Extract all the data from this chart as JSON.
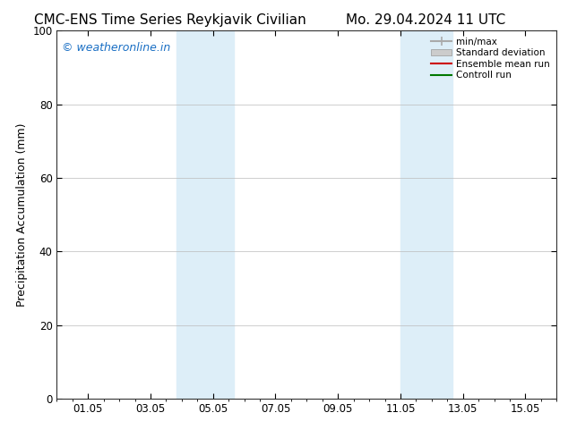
{
  "title_left": "CMC-ENS Time Series Reykjavik Civilian",
  "title_right": "Mo. 29.04.2024 11 UTC",
  "ylabel": "Precipitation Accumulation (mm)",
  "ylim": [
    0,
    100
  ],
  "yticks": [
    0,
    20,
    40,
    60,
    80,
    100
  ],
  "xtick_labels": [
    "01.05",
    "03.05",
    "05.05",
    "07.05",
    "09.05",
    "11.05",
    "13.05",
    "15.05"
  ],
  "xtick_positions": [
    1,
    3,
    5,
    7,
    9,
    11,
    13,
    15
  ],
  "xlim": [
    0,
    16
  ],
  "shaded_regions": [
    {
      "xmin": 3.83,
      "xmax": 4.5,
      "color": "#ddeef8"
    },
    {
      "xmin": 4.5,
      "xmax": 5.67,
      "color": "#ddeef8"
    },
    {
      "xmin": 11.0,
      "xmax": 11.67,
      "color": "#ddeef8"
    },
    {
      "xmin": 11.67,
      "xmax": 12.67,
      "color": "#ddeef8"
    }
  ],
  "watermark_text": "© weatheronline.in",
  "watermark_color": "#1a6fc4",
  "legend_entries": [
    {
      "label": "min/max",
      "color": "#aaaaaa",
      "lw": 1.5,
      "type": "line_with_ticks"
    },
    {
      "label": "Standard deviation",
      "color": "#cccccc",
      "lw": 6,
      "type": "thick_line"
    },
    {
      "label": "Ensemble mean run",
      "color": "#cc0000",
      "lw": 1.5,
      "type": "line"
    },
    {
      "label": "Controll run",
      "color": "#007700",
      "lw": 1.5,
      "type": "line"
    }
  ],
  "background_color": "#ffffff",
  "plot_bg_color": "#ffffff",
  "grid_color": "#bbbbbb",
  "title_fontsize": 11,
  "label_fontsize": 9,
  "tick_fontsize": 8.5
}
